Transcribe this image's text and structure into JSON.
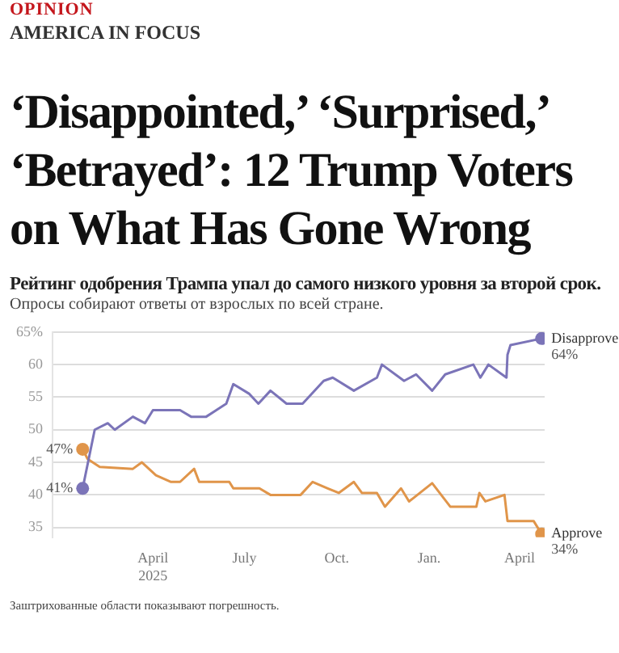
{
  "chart_data": {
    "type": "line",
    "title": "Рейтинг одобрения Трампа упал до самого низкого уровня за второй срок.",
    "subtitle": "Опросы собирают ответы от взрослых по всей стране.",
    "annotations": [
      "OPINION",
      "AMERICA IN FOCUS",
      "‘Disappointed,’ ‘Surprised,’ ‘Betrayed’: 12 Trump Voters on What Has Gone Wrong",
      "Заштрихованные области показывают погрешность.",
      {
        "text": "64%",
        "x": "2026-04-23",
        "y": 64
      },
      {
        "text": "34%",
        "x": "2026-04-23",
        "y": 34
      },
      {
        "text": "47%",
        "x": "2025-01-21",
        "y": 47
      },
      {
        "text": "41%",
        "x": "2025-01-21",
        "y": 41
      }
    ],
    "series": [
      {
        "name": "Disapprove",
        "color": "#7b74b8",
        "x": [
          "2025-01-21",
          "2025-02-02",
          "2025-02-15",
          "2025-02-22",
          "2025-03-12",
          "2025-03-24",
          "2025-04-01",
          "2025-04-28",
          "2025-05-09",
          "2025-05-24",
          "2025-06-13",
          "2025-06-20",
          "2025-07-06",
          "2025-07-15",
          "2025-07-27",
          "2025-08-12",
          "2025-08-28",
          "2025-09-18",
          "2025-09-27",
          "2025-10-18",
          "2025-11-10",
          "2025-11-15",
          "2025-12-07",
          "2025-12-19",
          "2026-01-04",
          "2026-01-17",
          "2026-02-14",
          "2026-02-21",
          "2026-03-01",
          "2026-03-19",
          "2026-03-20",
          "2026-03-23",
          "2026-04-23"
        ],
        "values": [
          41,
          50,
          51,
          50,
          52,
          51,
          53,
          53,
          52,
          52,
          54,
          57,
          55.5,
          54,
          56,
          54,
          54,
          57.5,
          58,
          56,
          58,
          60,
          57.5,
          58.5,
          56,
          58.5,
          60,
          58,
          60,
          58,
          61.5,
          63,
          64
        ]
      },
      {
        "name": "Approve",
        "color": "#e0954a",
        "x": [
          "2025-01-21",
          "2025-01-26",
          "2025-02-07",
          "2025-03-12",
          "2025-03-21",
          "2025-04-04",
          "2025-04-19",
          "2025-04-28",
          "2025-05-12",
          "2025-05-17",
          "2025-06-16",
          "2025-06-20",
          "2025-07-16",
          "2025-07-27",
          "2025-08-26",
          "2025-09-07",
          "2025-09-22",
          "2025-10-03",
          "2025-10-18",
          "2025-10-26",
          "2025-11-10",
          "2025-11-18",
          "2025-12-04",
          "2025-12-12",
          "2026-01-04",
          "2026-01-22",
          "2026-02-17",
          "2026-02-20",
          "2026-02-26",
          "2026-03-17",
          "2026-03-20",
          "2026-04-15",
          "2026-04-23"
        ],
        "values": [
          47,
          45.5,
          44.3,
          44,
          45,
          43,
          42,
          42,
          44,
          42,
          42,
          41,
          41,
          40,
          40,
          42,
          41,
          40.3,
          42,
          40.3,
          40.3,
          38.2,
          41,
          39,
          41.8,
          38.2,
          38.2,
          40.3,
          39,
          40,
          36,
          36,
          34
        ]
      }
    ],
    "xlim": [
      "2024-12-22",
      "2026-04-26"
    ],
    "xticks": [
      {
        "value": "2025-04-01",
        "label": "April 2025"
      },
      {
        "value": "2025-07-01",
        "label": "July"
      },
      {
        "value": "2025-10-01",
        "label": "Oct."
      },
      {
        "value": "2026-01-01",
        "label": "Jan."
      },
      {
        "value": "2026-04-01",
        "label": "April"
      }
    ],
    "ylim": [
      33.5,
      65
    ],
    "yticks": [
      35,
      40,
      45,
      50,
      55,
      60,
      {
        "value": 65,
        "label": "65%"
      }
    ],
    "grid": "y",
    "legend": false,
    "line_style": "solid"
  }
}
